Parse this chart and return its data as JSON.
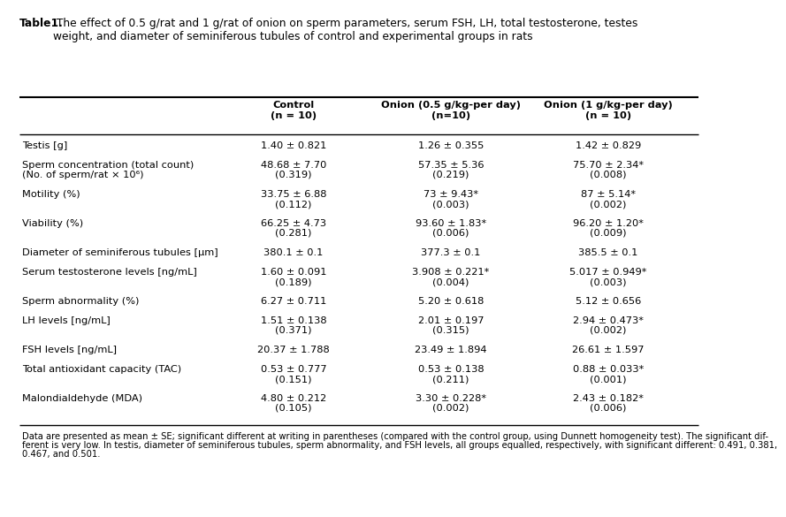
{
  "title_bold": "Table1.",
  "title_rest": " The effect of 0.5 g/rat and 1 g/rat of onion on sperm parameters, serum FSH, LH, total testosterone, testes\nweight, and diameter of seminiferous tubules of control and experimental groups in rats",
  "col_headers": [
    "Control\n(n = 10)",
    "Onion (0.5 g/kg-per day)\n(n=10)",
    "Onion (1 g/kg-per day)\n(n = 10)"
  ],
  "rows": [
    {
      "label": "Testis [g]",
      "label2": "",
      "vals": [
        "1.40 ± 0.821",
        "1.26 ± 0.355",
        "1.42 ± 0.829"
      ],
      "vals2": [
        "",
        "",
        ""
      ]
    },
    {
      "label": "Sperm concentration (total count)",
      "label2": "(No. of sperm/rat × 10⁶)",
      "vals": [
        "48.68 ± 7.70",
        "57.35 ± 5.36",
        "75.70 ± 2.34*"
      ],
      "vals2": [
        "(0.319)",
        "(0.219)",
        "(0.008)"
      ]
    },
    {
      "label": "Motility (%)",
      "label2": "",
      "vals": [
        "33.75 ± 6.88",
        "73 ± 9.43*",
        "87 ± 5.14*"
      ],
      "vals2": [
        "(0.112)",
        "(0.003)",
        "(0.002)"
      ]
    },
    {
      "label": "Viability (%)",
      "label2": "",
      "vals": [
        "66.25 ± 4.73",
        "93.60 ± 1.83*",
        "96.20 ± 1.20*"
      ],
      "vals2": [
        "(0.281)",
        "(0.006)",
        "(0.009)"
      ]
    },
    {
      "label": "Diameter of seminiferous tubules [μm]",
      "label2": "",
      "vals": [
        "380.1 ± 0.1",
        "377.3 ± 0.1",
        "385.5 ± 0.1"
      ],
      "vals2": [
        "",
        "",
        ""
      ]
    },
    {
      "label": "Serum testosterone levels [ng/mL]",
      "label2": "",
      "vals": [
        "1.60 ± 0.091",
        "3.908 ± 0.221*",
        "5.017 ± 0.949*"
      ],
      "vals2": [
        "(0.189)",
        "(0.004)",
        "(0.003)"
      ]
    },
    {
      "label": "Sperm abnormality (%)",
      "label2": "",
      "vals": [
        "6.27 ± 0.711",
        "5.20 ± 0.618",
        "5.12 ± 0.656"
      ],
      "vals2": [
        "",
        "",
        ""
      ]
    },
    {
      "label": "LH levels [ng/mL]",
      "label2": "",
      "vals": [
        "1.51 ± 0.138",
        "2.01 ± 0.197",
        "2.94 ± 0.473*"
      ],
      "vals2": [
        "(0.371)",
        "(0.315)",
        "(0.002)"
      ]
    },
    {
      "label": "FSH levels [ng/mL]",
      "label2": "",
      "vals": [
        "20.37 ± 1.788",
        "23.49 ± 1.894",
        "26.61 ± 1.597"
      ],
      "vals2": [
        "",
        "",
        ""
      ]
    },
    {
      "label": "Total antioxidant capacity (TAC)",
      "label2": "",
      "vals": [
        "0.53 ± 0.777",
        "0.53 ± 0.138",
        "0.88 ± 0.033*"
      ],
      "vals2": [
        "(0.151)",
        "(0.211)",
        "(0.001)"
      ]
    },
    {
      "label": "Malondialdehyde (MDA)",
      "label2": "",
      "vals": [
        "4.80 ± 0.212",
        "3.30 ± 0.228*",
        "2.43 ± 0.182*"
      ],
      "vals2": [
        "(0.105)",
        "(0.002)",
        "(0.006)"
      ]
    }
  ],
  "footnote_line1": "Data are presented as mean ± SE; significant different at writing in parentheses (compared with the control group, using Dunnett homogeneity test). The significant dif-",
  "footnote_line2": "ferent is very low. In testis, diameter of seminiferous tubules, sperm abnormality, and FSH levels, all groups equalled, respectively, with significant different: 0.491, 0.381,",
  "footnote_line3": "0.467, and 0.501.",
  "bg_color": "#ffffff",
  "text_color": "#000000",
  "font_size": 8.2,
  "header_font_size": 8.2,
  "title_font_size": 8.8
}
